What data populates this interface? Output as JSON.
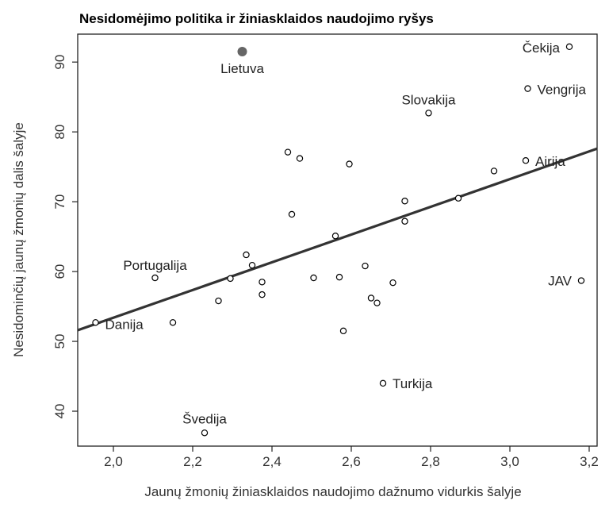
{
  "chart_data": {
    "type": "scatter",
    "title": "Nesidomėjimo politika ir žiniasklaidos naudojimo ryšys",
    "xlabel": "Jaunų žmonių žiniasklaidos naudojimo dažnumo vidurkis šalyje",
    "ylabel": "Nesidominčių jaunų žmonių dalis šalyje",
    "xlim": [
      1.91,
      3.22
    ],
    "ylim": [
      35,
      94
    ],
    "x_ticks": [
      2.0,
      2.2,
      2.4,
      2.6,
      2.8,
      3.0,
      3.2
    ],
    "x_tick_labels": [
      "2,0",
      "2,2",
      "2,4",
      "2,6",
      "2,8",
      "3,0",
      "3,2"
    ],
    "y_ticks": [
      40,
      50,
      60,
      70,
      80,
      90
    ],
    "y_tick_labels": [
      "40",
      "50",
      "60",
      "70",
      "80",
      "90"
    ],
    "grid": false,
    "highlight_color": "#666666",
    "point_color": "#000000",
    "fit_line": {
      "x": [
        1.91,
        3.22
      ],
      "y": [
        51.6,
        77.6
      ],
      "color": "#333333"
    },
    "points": [
      {
        "x": 2.325,
        "y": 91.5,
        "label": "Lietuva",
        "highlight": true
      },
      {
        "x": 3.15,
        "y": 92.2,
        "label": "Čekija"
      },
      {
        "x": 3.045,
        "y": 86.2,
        "label": "Vengrija"
      },
      {
        "x": 2.795,
        "y": 82.7,
        "label": "Slovakija"
      },
      {
        "x": 3.04,
        "y": 75.9,
        "label": "Airija"
      },
      {
        "x": 2.105,
        "y": 59.1,
        "label": "Portugalija"
      },
      {
        "x": 3.18,
        "y": 58.7,
        "label": "JAV"
      },
      {
        "x": 1.955,
        "y": 52.7,
        "label": "Danija"
      },
      {
        "x": 2.68,
        "y": 44.0,
        "label": "Turkija"
      },
      {
        "x": 2.23,
        "y": 36.9,
        "label": "Švedija"
      },
      {
        "x": 2.44,
        "y": 77.1
      },
      {
        "x": 2.47,
        "y": 76.2
      },
      {
        "x": 2.595,
        "y": 75.4
      },
      {
        "x": 2.96,
        "y": 74.4
      },
      {
        "x": 2.87,
        "y": 70.5
      },
      {
        "x": 2.735,
        "y": 70.1
      },
      {
        "x": 2.45,
        "y": 68.2
      },
      {
        "x": 2.735,
        "y": 67.2
      },
      {
        "x": 2.56,
        "y": 65.1
      },
      {
        "x": 2.335,
        "y": 62.4
      },
      {
        "x": 2.35,
        "y": 60.9
      },
      {
        "x": 2.635,
        "y": 60.8
      },
      {
        "x": 2.295,
        "y": 59.0
      },
      {
        "x": 2.505,
        "y": 59.1
      },
      {
        "x": 2.57,
        "y": 59.2
      },
      {
        "x": 2.375,
        "y": 58.5
      },
      {
        "x": 2.705,
        "y": 58.4
      },
      {
        "x": 2.375,
        "y": 56.7
      },
      {
        "x": 2.265,
        "y": 55.8
      },
      {
        "x": 2.65,
        "y": 56.2
      },
      {
        "x": 2.665,
        "y": 55.5
      },
      {
        "x": 2.15,
        "y": 52.7
      },
      {
        "x": 2.58,
        "y": 51.5
      }
    ]
  }
}
